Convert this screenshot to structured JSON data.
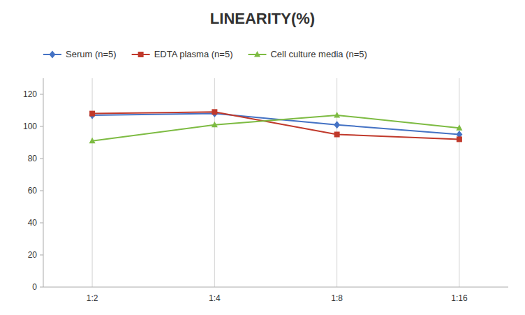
{
  "chart_data": {
    "type": "line",
    "title": "LINEARITY(%)",
    "categories": [
      "1:2",
      "1:4",
      "1:8",
      "1:16"
    ],
    "series": [
      {
        "name": "Serum (n=5)",
        "color": "#4472c4",
        "marker": "diamond",
        "values": [
          107,
          108,
          101,
          95
        ]
      },
      {
        "name": "EDTA plasma (n=5)",
        "color": "#c0392b",
        "marker": "square",
        "values": [
          108,
          109,
          95,
          92
        ]
      },
      {
        "name": "Cell culture media (n=5)",
        "color": "#7dbb42",
        "marker": "triangle",
        "values": [
          91,
          101,
          107,
          99
        ]
      }
    ],
    "ylim": [
      0,
      130
    ],
    "yticks": [
      0,
      20,
      40,
      60,
      80,
      100,
      120
    ],
    "grid": "x",
    "legend": "top"
  }
}
